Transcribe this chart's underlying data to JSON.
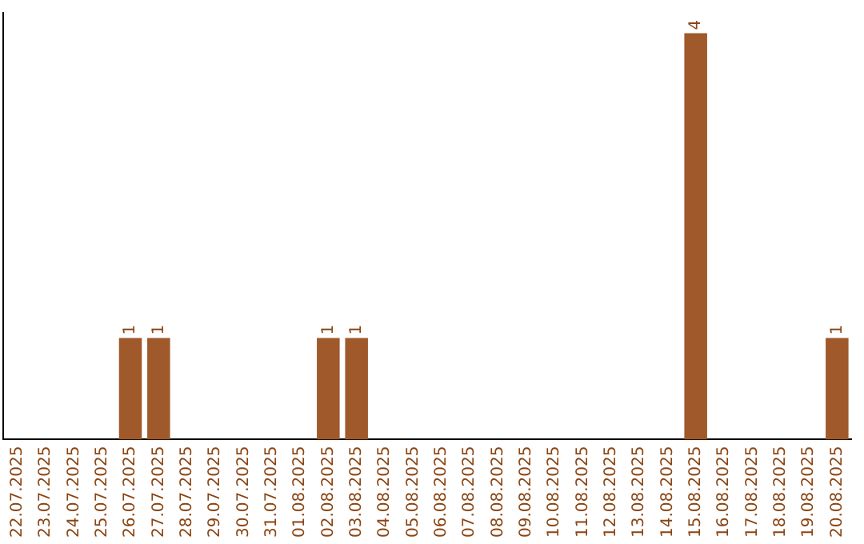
{
  "chart_data": {
    "type": "bar",
    "categories": [
      "22.07.2025",
      "23.07.2025",
      "24.07.2025",
      "25.07.2025",
      "26.07.2025",
      "27.07.2025",
      "28.07.2025",
      "29.07.2025",
      "30.07.2025",
      "31.07.2025",
      "01.08.2025",
      "02.08.2025",
      "03.08.2025",
      "04.08.2025",
      "05.08.2025",
      "06.08.2025",
      "07.08.2025",
      "08.08.2025",
      "09.08.2025",
      "10.08.2025",
      "11.08.2025",
      "12.08.2025",
      "13.08.2025",
      "14.08.2025",
      "15.08.2025",
      "16.08.2025",
      "17.08.2025",
      "18.08.2025",
      "19.08.2025",
      "20.08.2025"
    ],
    "values": [
      0,
      0,
      0,
      0,
      1,
      1,
      0,
      0,
      0,
      0,
      0,
      1,
      1,
      0,
      0,
      0,
      0,
      0,
      0,
      0,
      0,
      0,
      0,
      0,
      4,
      0,
      0,
      0,
      0,
      1
    ],
    "value_labels": [
      null,
      null,
      null,
      null,
      "1",
      "1",
      null,
      null,
      null,
      null,
      null,
      "1",
      "1",
      null,
      null,
      null,
      null,
      null,
      null,
      null,
      null,
      null,
      null,
      null,
      "4",
      null,
      null,
      null,
      null,
      "1"
    ],
    "color": "#a0592a",
    "ylim": [
      0,
      4.2
    ],
    "tick_labels": "x",
    "grid": false,
    "legend": false
  }
}
